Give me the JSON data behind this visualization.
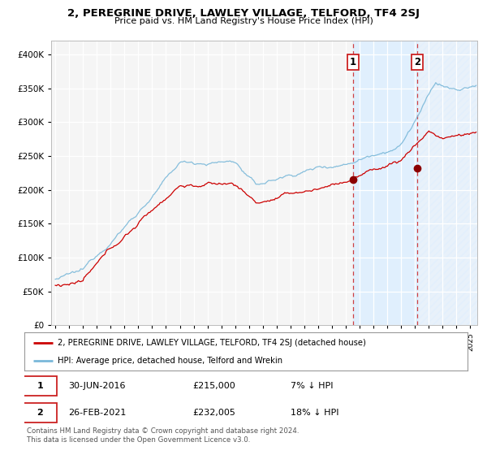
{
  "title": "2, PEREGRINE DRIVE, LAWLEY VILLAGE, TELFORD, TF4 2SJ",
  "subtitle": "Price paid vs. HM Land Registry's House Price Index (HPI)",
  "legend_line1": "2, PEREGRINE DRIVE, LAWLEY VILLAGE, TELFORD, TF4 2SJ (detached house)",
  "legend_line2": "HPI: Average price, detached house, Telford and Wrekin",
  "annotation1_date": "30-JUN-2016",
  "annotation1_price": "£215,000",
  "annotation1_hpi": "7% ↓ HPI",
  "annotation2_date": "26-FEB-2021",
  "annotation2_price": "£232,005",
  "annotation2_hpi": "18% ↓ HPI",
  "footer": "Contains HM Land Registry data © Crown copyright and database right 2024.\nThis data is licensed under the Open Government Licence v3.0.",
  "sale1_year": 2016.5,
  "sale1_value": 215000,
  "sale2_year": 2021.15,
  "sale2_value": 232005,
  "hpi_color": "#7ab8d9",
  "price_color": "#cc0000",
  "dot_color": "#8b0000",
  "bg_color": "#ffffff",
  "plot_bg": "#f5f5f5",
  "shade_color": "#ddeeff",
  "ylim": [
    0,
    420000
  ],
  "xlim_start": 1994.7,
  "xlim_end": 2025.5
}
